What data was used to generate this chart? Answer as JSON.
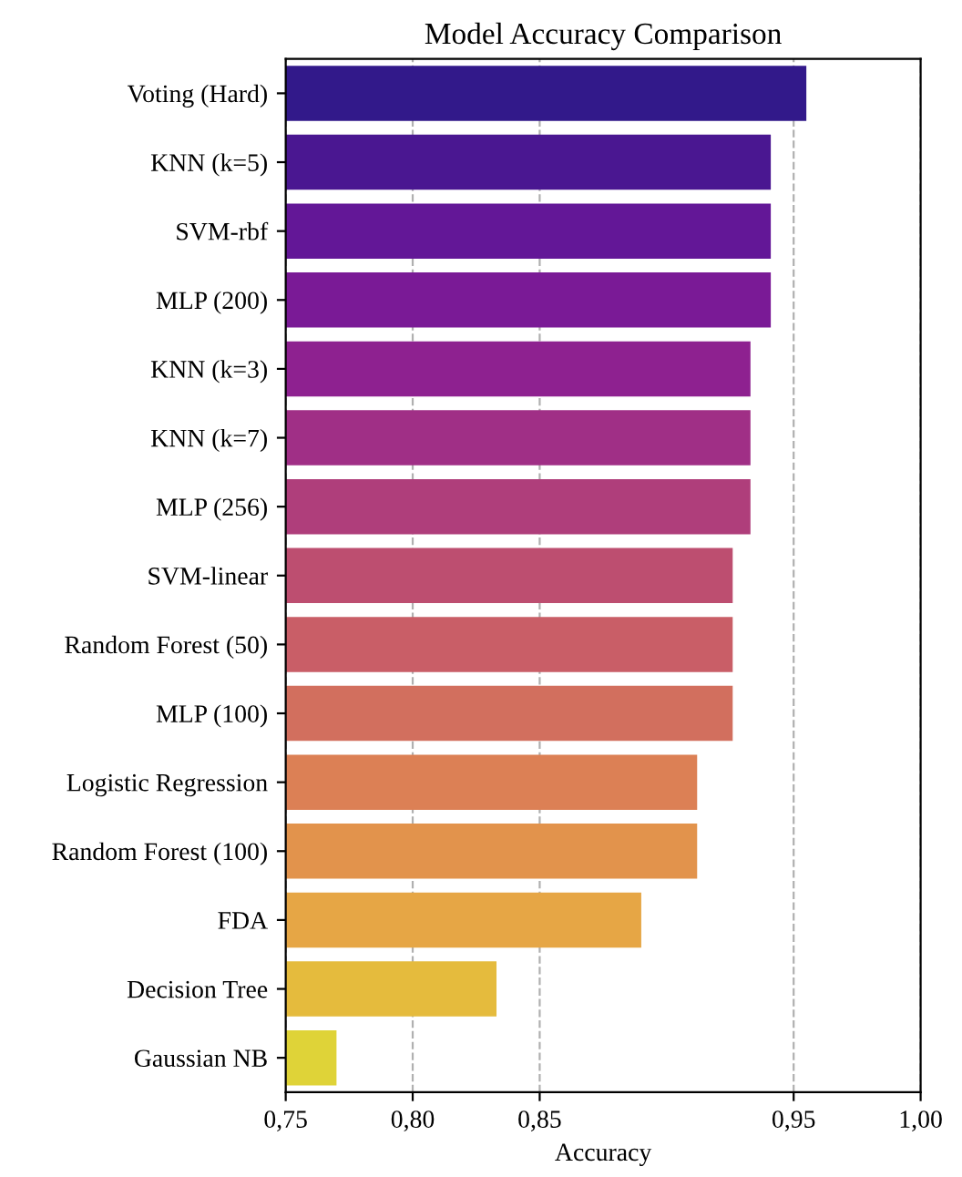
{
  "chart_data": {
    "type": "bar",
    "orientation": "horizontal",
    "title": "Model Accuracy Comparison",
    "xlabel": "Accuracy",
    "categories": [
      "Voting (Hard)",
      "KNN (k=5)",
      "SVM-rbf",
      "MLP (200)",
      "KNN (k=3)",
      "KNN (k=7)",
      "MLP (256)",
      "SVM-linear",
      "Random Forest (50)",
      "MLP (100)",
      "Logistic Regression",
      "Random Forest (100)",
      "FDA",
      "Decision Tree",
      "Gaussian NB"
    ],
    "values": [
      0.955,
      0.941,
      0.941,
      0.941,
      0.933,
      0.933,
      0.933,
      0.926,
      0.926,
      0.926,
      0.912,
      0.912,
      0.89,
      0.833,
      0.77
    ],
    "colors": [
      "#32198a",
      "#4a1791",
      "#631797",
      "#7a1a96",
      "#8e2190",
      "#a02f86",
      "#af3e7b",
      "#bd4e70",
      "#c95e67",
      "#d26f5e",
      "#dc8055",
      "#e2934c",
      "#e6a645",
      "#e5bb3d",
      "#dfd338"
    ],
    "xlim": [
      0.75,
      1.0
    ],
    "xticks": [
      {
        "value": 0.75,
        "label": "0,75"
      },
      {
        "value": 0.8,
        "label": "0,80"
      },
      {
        "value": 0.85,
        "label": "0,85"
      },
      {
        "value": 0.95,
        "label": "0,95"
      },
      {
        "value": 1.0,
        "label": "1,00"
      }
    ],
    "grid": "x"
  }
}
